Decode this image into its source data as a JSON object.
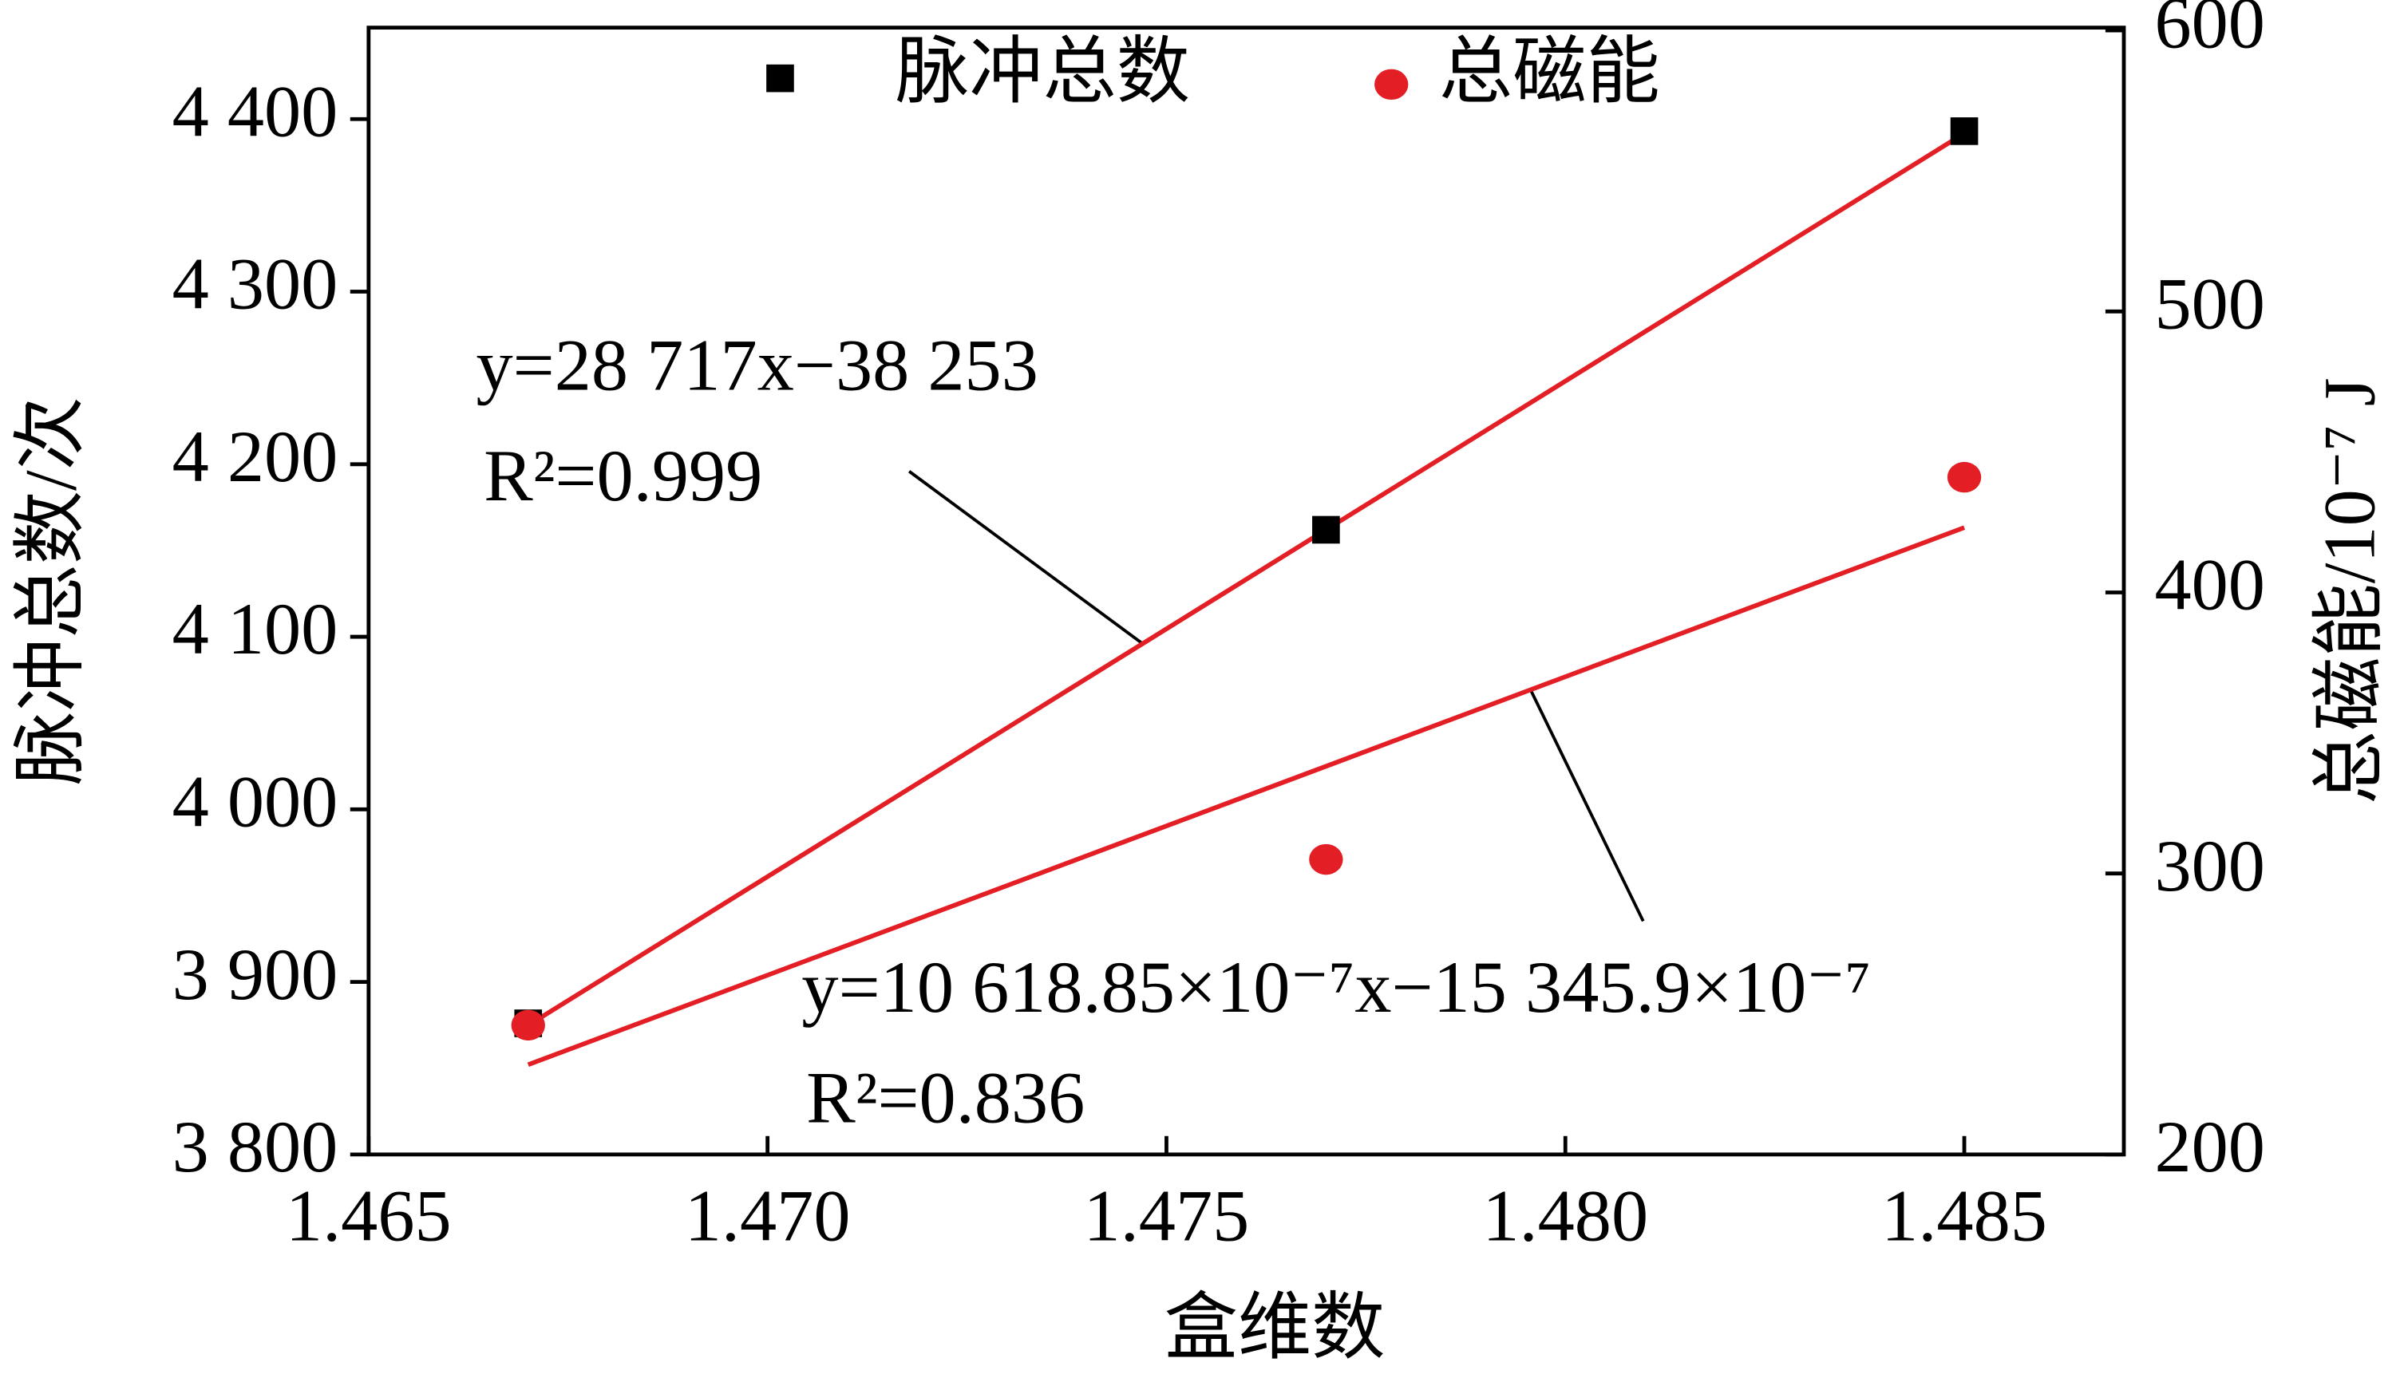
{
  "chart_data": {
    "type": "scatter",
    "x_label": "盒维数",
    "y_label": "脉冲总数/次",
    "y2_label": "总磁能/10⁻⁷ J",
    "x": [
      1.467,
      1.477,
      1.485
    ],
    "series": [
      {
        "name": "脉冲总数",
        "color": "#000000",
        "marker": "square",
        "axis": "y",
        "values": [
          3876,
          4162,
          4393
        ]
      },
      {
        "name": "总磁能",
        "color": "#e31e24",
        "marker": "circle",
        "axis": "y2",
        "values": [
          246,
          305,
          441
        ]
      }
    ],
    "fits": [
      {
        "axis": "y",
        "color": "#e31e24",
        "slope": 28717,
        "intercept": -38253,
        "x": [
          1.467,
          1.485
        ],
        "equation": "y=28 717x−38 253",
        "r2": "R²=0.999"
      },
      {
        "axis": "y2",
        "color": "#e31e24",
        "slope": 10618.85,
        "intercept": -15345.9,
        "x": [
          1.467,
          1.485
        ],
        "equation": "y=10 618.85×10⁻⁷x−15 345.9×10⁻⁷",
        "r2": "R²=0.836"
      }
    ],
    "xlim": [
      1.465,
      1.487
    ],
    "xticks": [
      1.465,
      1.47,
      1.475,
      1.48,
      1.485
    ],
    "ylim": [
      3800,
      4453
    ],
    "yticks": [
      {
        "value": 3800,
        "label": "3 800"
      },
      {
        "value": 3900,
        "label": "3 900"
      },
      {
        "value": 4000,
        "label": "4 000"
      },
      {
        "value": 4100,
        "label": "4 100"
      },
      {
        "value": 4200,
        "label": "4 200"
      },
      {
        "value": 4300,
        "label": "4 300"
      },
      {
        "value": 4400,
        "label": "4 400"
      }
    ],
    "y2lim": [
      200,
      601
    ],
    "y2ticks": [
      200,
      300,
      400,
      500,
      600
    ],
    "xtick_labels": [
      "1.465",
      "1.470",
      "1.475",
      "1.480",
      "1.485"
    ]
  }
}
